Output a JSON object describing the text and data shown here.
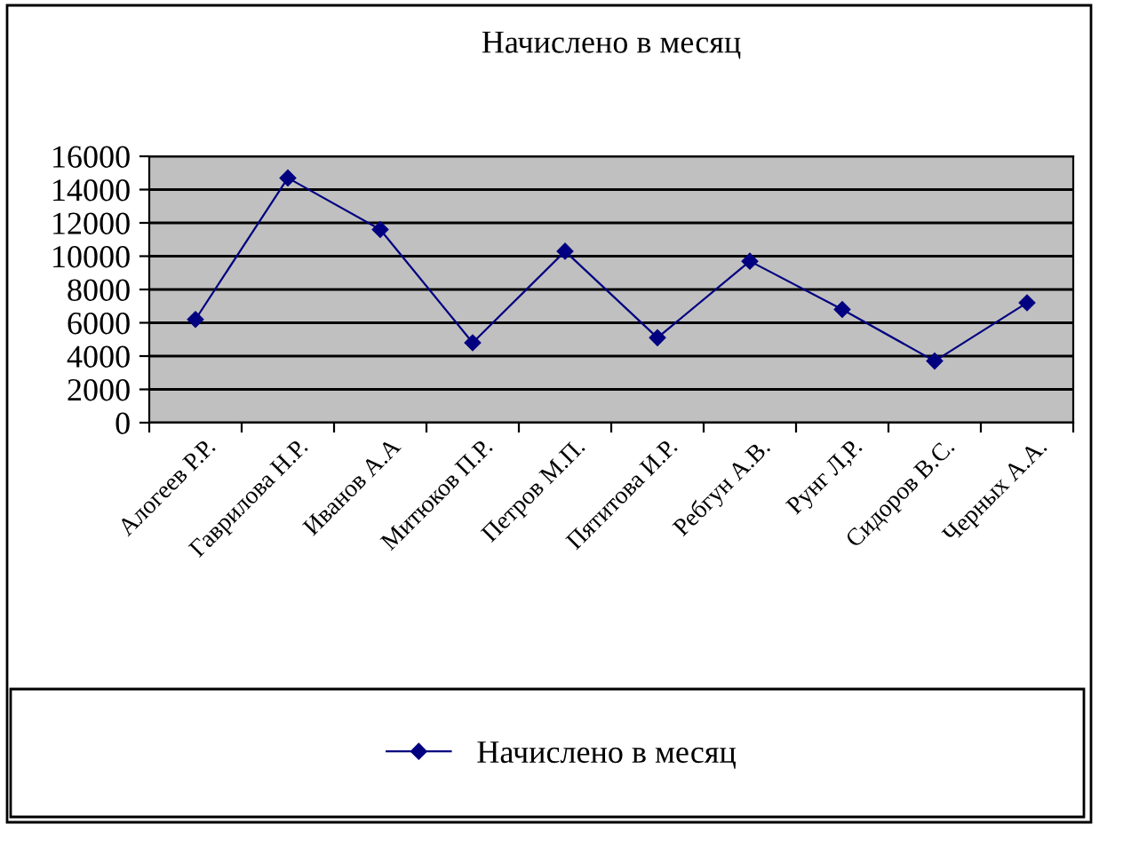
{
  "chart_data": {
    "type": "line",
    "title": "Начислено в месяц",
    "categories": [
      "Алогеев Р.Р.",
      "Гаврилова Н.Р.",
      "Иванов А.А",
      "Митюков П.Р.",
      "Петров М.П.",
      "Пятитова И.Р.",
      "Ребгун А.В.",
      "Рунг Л,Р.",
      "Сидоров В.С.",
      "Черных А.А."
    ],
    "series": [
      {
        "name": "Начислено в месяц",
        "color": "#000080",
        "values": [
          6200,
          14700,
          11600,
          4800,
          10300,
          5100,
          9700,
          6800,
          3700,
          7200
        ]
      }
    ],
    "ylim": [
      0,
      16000
    ],
    "yticks": [
      0,
      2000,
      4000,
      6000,
      8000,
      10000,
      12000,
      14000,
      16000
    ],
    "grid": "y",
    "legend": "bottom",
    "marker": "diamond",
    "line_style": "solid"
  }
}
